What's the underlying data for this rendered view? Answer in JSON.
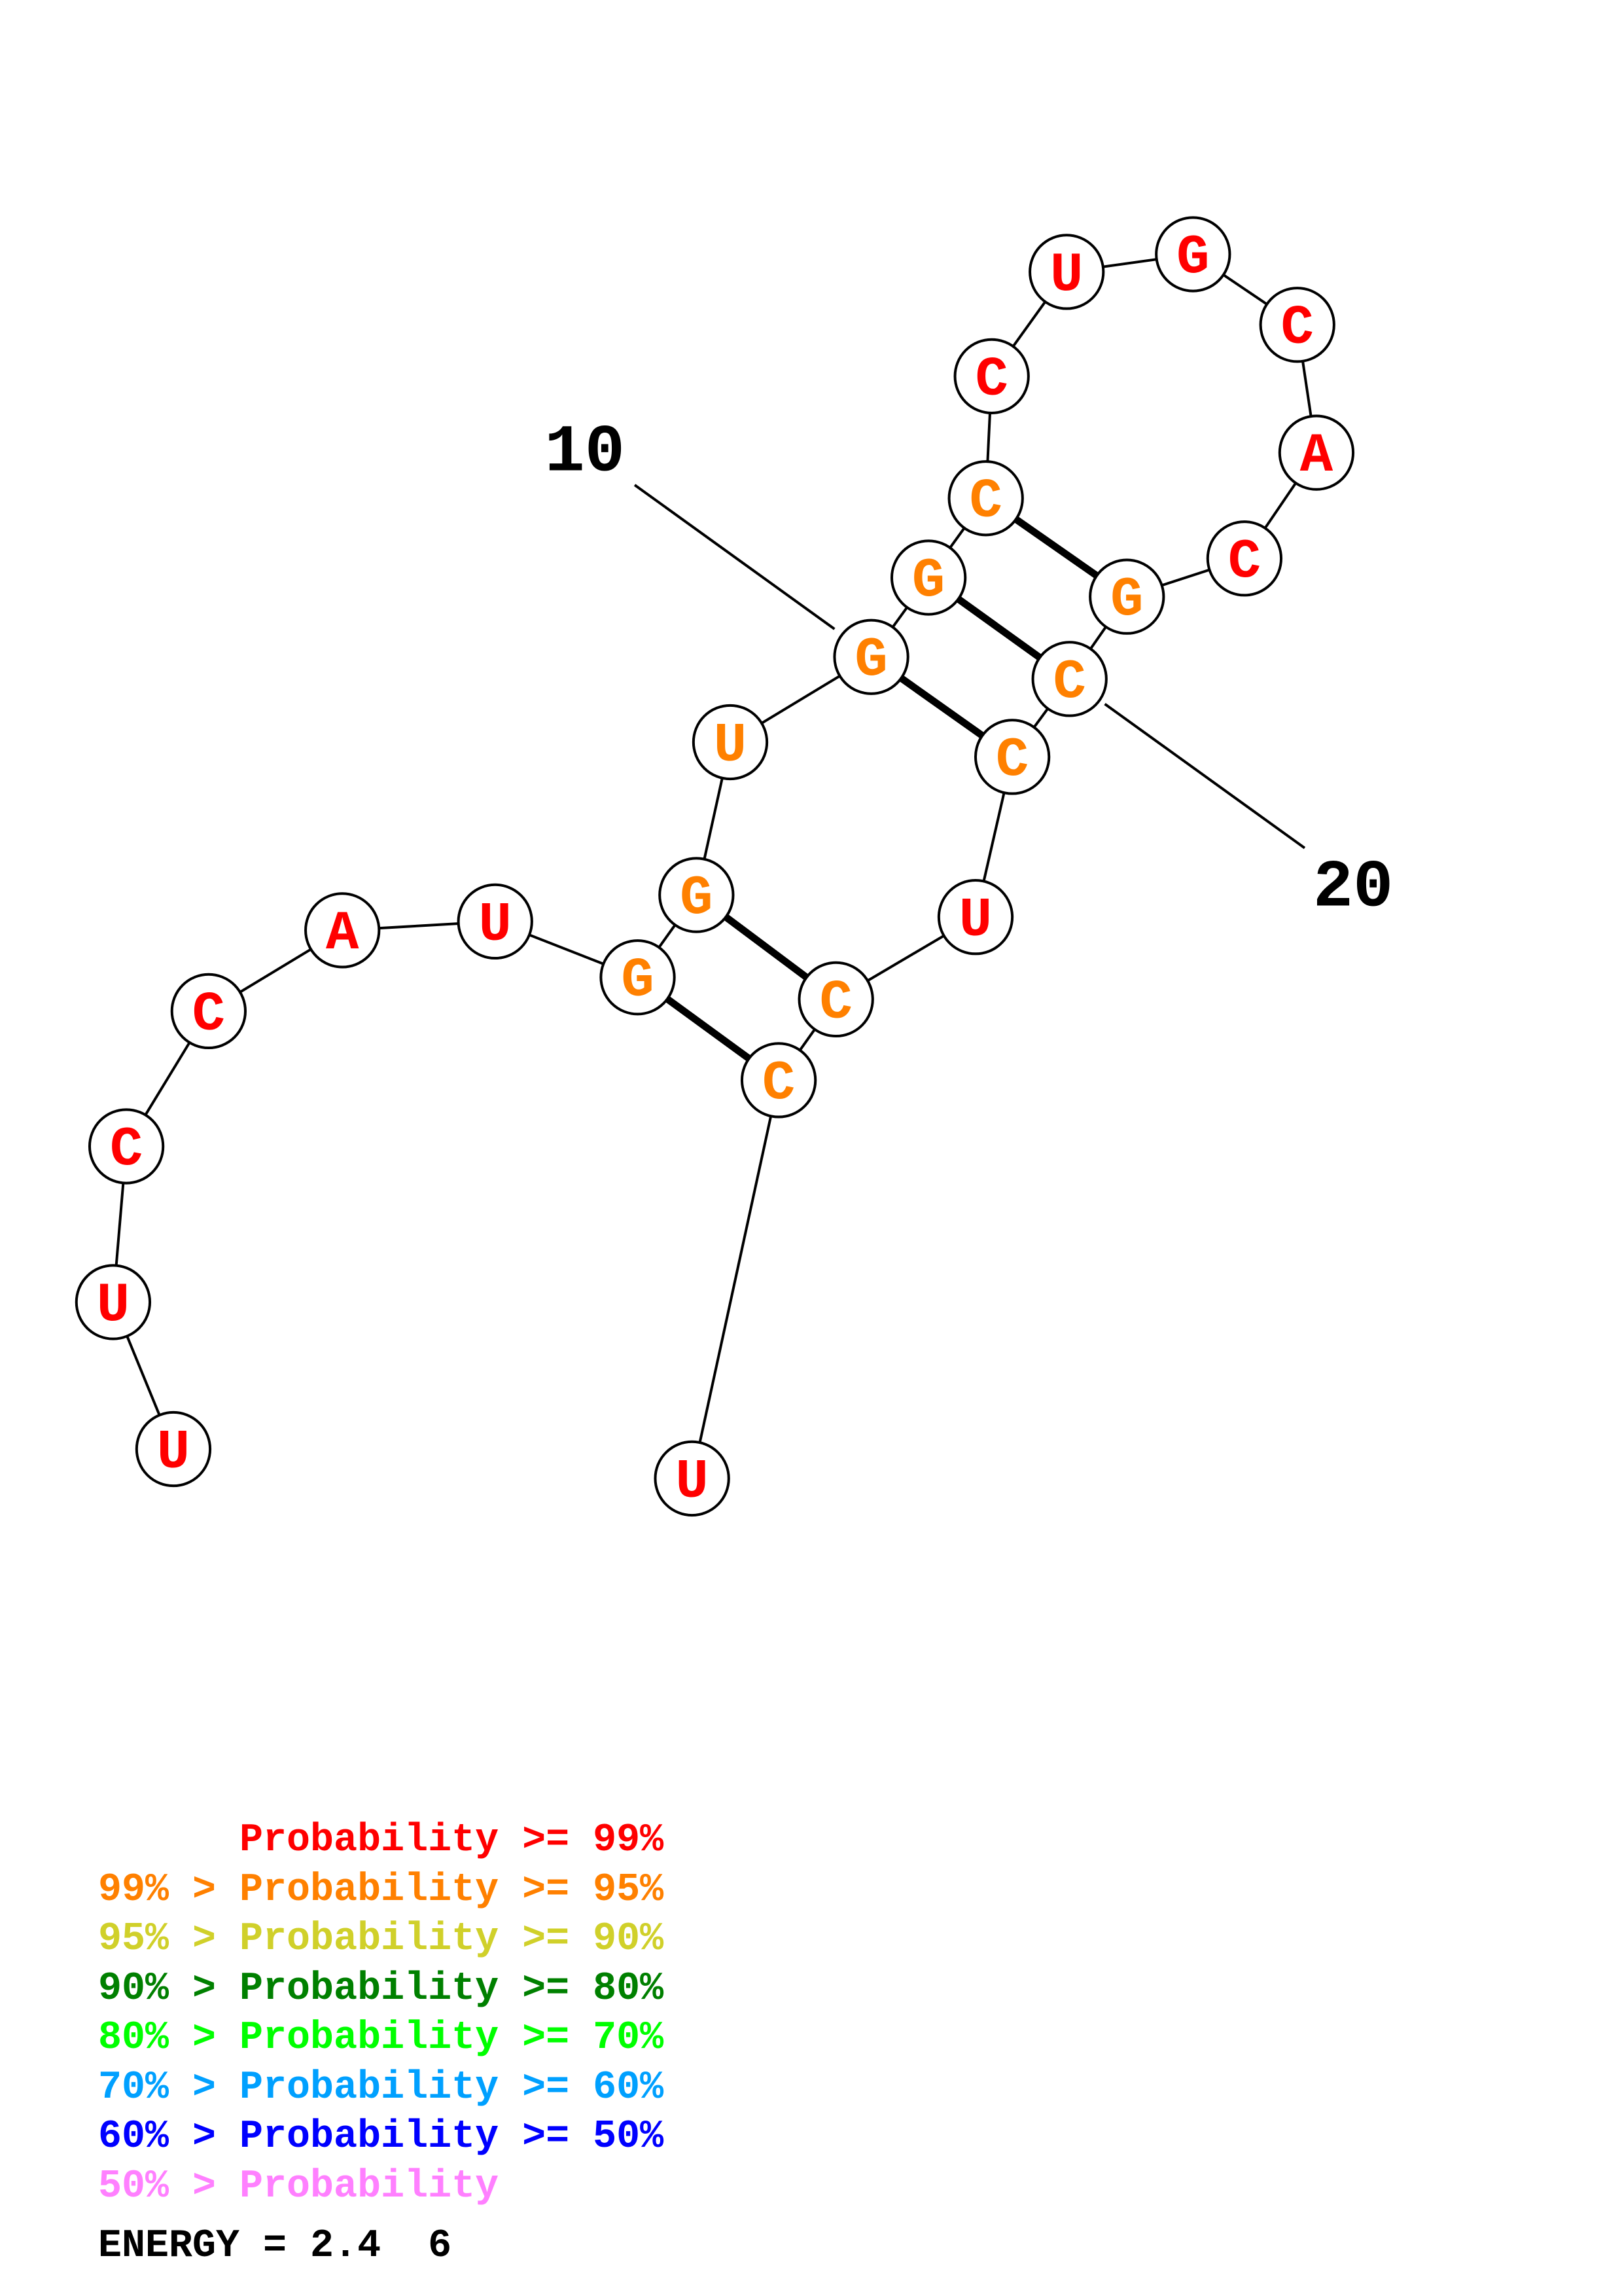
{
  "structure": {
    "sequence": [
      "U",
      "U",
      "C",
      "C",
      "A",
      "U",
      "G",
      "G",
      "U",
      "G",
      "G",
      "C",
      "C",
      "U",
      "G",
      "C",
      "A",
      "C",
      "G",
      "C",
      "C",
      "U",
      "C",
      "C",
      "U"
    ],
    "prob_class": [
      0,
      0,
      0,
      0,
      0,
      0,
      1,
      1,
      1,
      1,
      1,
      1,
      0,
      0,
      0,
      0,
      0,
      0,
      1,
      1,
      1,
      0,
      1,
      1,
      0
    ],
    "pairs": [
      [
        7,
        24
      ],
      [
        8,
        23
      ],
      [
        10,
        21
      ],
      [
        11,
        20
      ],
      [
        12,
        19
      ]
    ],
    "number_ticks": [
      {
        "label": "10",
        "nt": 10
      },
      {
        "label": "20",
        "nt": 20
      }
    ]
  },
  "colors": {
    "class_colors": [
      "#ff0000",
      "#ff8000"
    ]
  },
  "legend": {
    "rows": [
      {
        "text": "      Probability >= 99%",
        "color": "#ff0000"
      },
      {
        "text": "99% > Probability >= 95%",
        "color": "#ff8000"
      },
      {
        "text": "95% > Probability >= 90%",
        "color": "#d0d02a"
      },
      {
        "text": "90% > Probability >= 80%",
        "color": "#008000"
      },
      {
        "text": "80% > Probability >= 70%",
        "color": "#00ff00"
      },
      {
        "text": "70% > Probability >= 60%",
        "color": "#00a0ff"
      },
      {
        "text": "60% > Probability >= 50%",
        "color": "#0000ff"
      },
      {
        "text": "50% > Probability",
        "color": "#ff80ff"
      }
    ]
  },
  "energy": {
    "text": "ENERGY = 2.4  6"
  }
}
